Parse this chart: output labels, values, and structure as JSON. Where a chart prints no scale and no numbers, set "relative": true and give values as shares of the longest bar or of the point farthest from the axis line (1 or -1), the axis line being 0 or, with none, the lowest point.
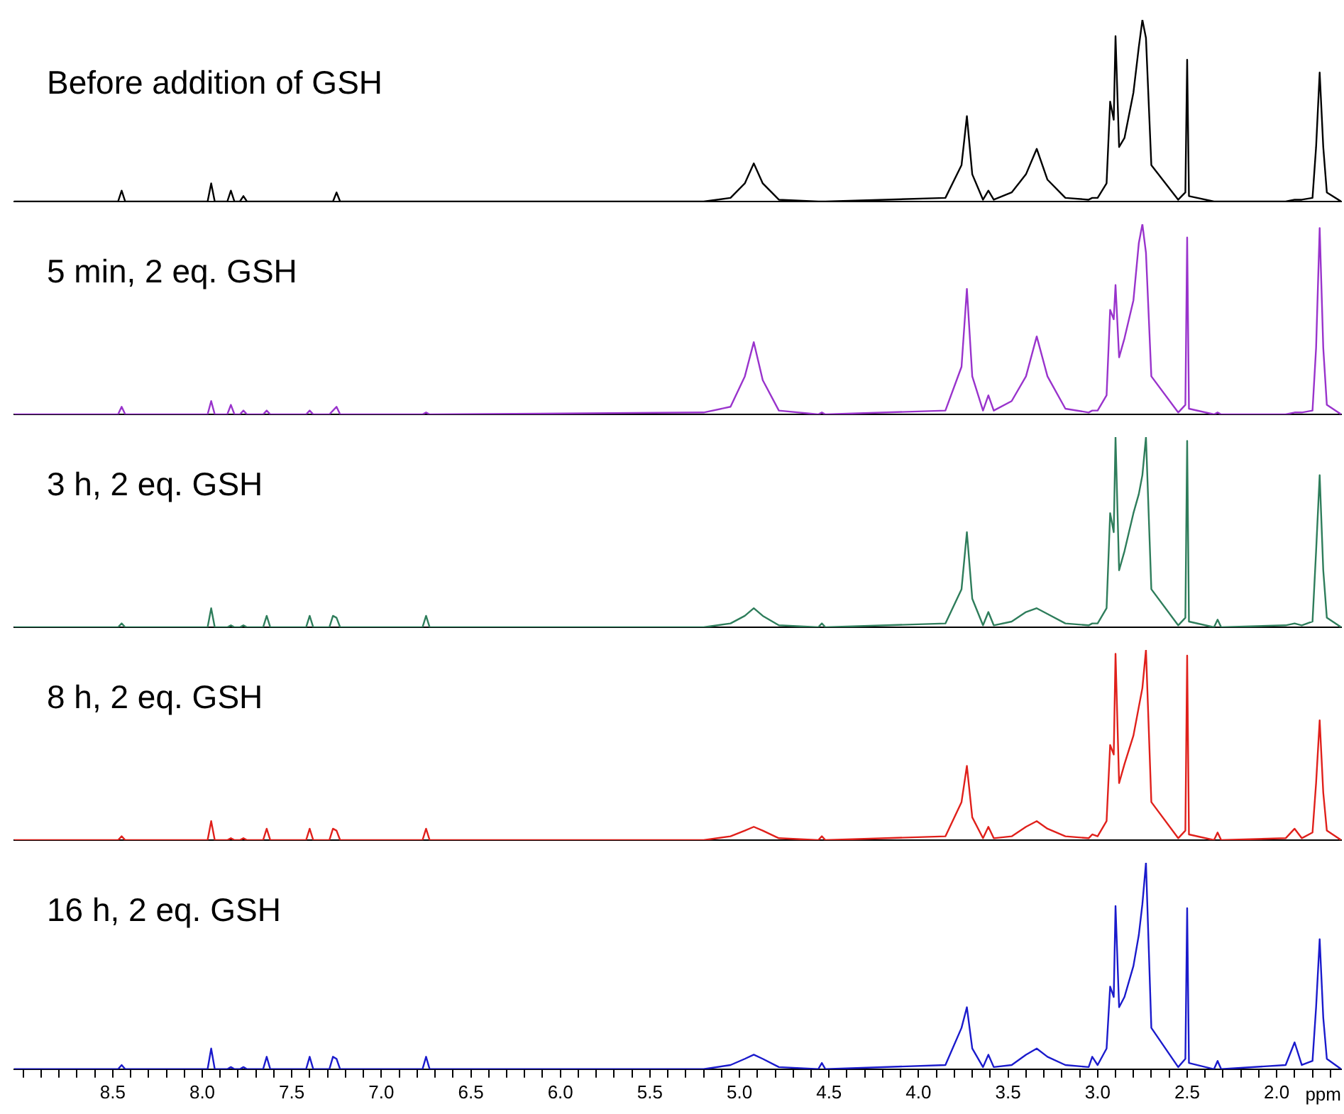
{
  "chart_data": [
    {
      "type": "line",
      "title": "Before addition of GSH",
      "relative": true,
      "tick_labels": false,
      "legend": false,
      "marker": "none",
      "color": "#000000",
      "xlim": [
        9.05,
        1.64
      ],
      "x": [
        9.05,
        8.47,
        8.45,
        8.43,
        7.97,
        7.95,
        7.93,
        7.86,
        7.84,
        7.82,
        7.79,
        7.77,
        7.75,
        7.66,
        7.64,
        7.62,
        7.42,
        7.4,
        7.38,
        7.29,
        7.27,
        7.25,
        7.23,
        6.77,
        6.75,
        6.73,
        5.2,
        5.05,
        4.97,
        4.92,
        4.87,
        4.78,
        4.56,
        4.54,
        4.52,
        3.85,
        3.76,
        3.73,
        3.7,
        3.64,
        3.61,
        3.58,
        3.48,
        3.4,
        3.34,
        3.28,
        3.18,
        3.05,
        3.03,
        3.0,
        2.95,
        2.93,
        2.91,
        2.9,
        2.88,
        2.85,
        2.8,
        2.77,
        2.75,
        2.73,
        2.7,
        2.55,
        2.51,
        2.5,
        2.49,
        2.35,
        2.33,
        2.31,
        1.95,
        1.9,
        1.86,
        1.8,
        1.78,
        1.76,
        1.74,
        1.72,
        1.64
      ],
      "values": [
        0,
        0,
        0.06,
        0,
        0,
        0.1,
        0,
        0,
        0.06,
        0,
        0,
        0.03,
        0,
        0,
        0,
        0,
        0,
        0,
        0,
        0,
        0,
        0.05,
        0,
        0,
        0,
        0,
        0,
        0.02,
        0.1,
        0.21,
        0.1,
        0.01,
        0,
        0,
        0,
        0.02,
        0.2,
        0.47,
        0.15,
        0.01,
        0.06,
        0.01,
        0.05,
        0.15,
        0.29,
        0.12,
        0.02,
        0.01,
        0.02,
        0.02,
        0.1,
        0.55,
        0.45,
        0.91,
        0.3,
        0.35,
        0.6,
        0.85,
        1,
        0.9,
        0.2,
        0.01,
        0.05,
        0.78,
        0.03,
        0,
        0,
        0,
        0,
        0.01,
        0.01,
        0.02,
        0.3,
        0.71,
        0.3,
        0.05,
        0
      ]
    },
    {
      "type": "line",
      "title": "5 min, 2 eq. GSH",
      "relative": true,
      "tick_labels": false,
      "legend": false,
      "marker": "none",
      "color": "#9933cc",
      "xlim": [
        9.05,
        1.64
      ],
      "x": [
        9.05,
        8.47,
        8.45,
        8.43,
        7.97,
        7.95,
        7.93,
        7.86,
        7.84,
        7.82,
        7.79,
        7.77,
        7.75,
        7.66,
        7.64,
        7.62,
        7.42,
        7.4,
        7.38,
        7.29,
        7.27,
        7.25,
        7.23,
        6.77,
        6.75,
        6.73,
        5.2,
        5.05,
        4.97,
        4.92,
        4.87,
        4.78,
        4.56,
        4.54,
        4.52,
        3.85,
        3.76,
        3.73,
        3.7,
        3.64,
        3.61,
        3.58,
        3.48,
        3.4,
        3.34,
        3.28,
        3.18,
        3.05,
        3.03,
        3.0,
        2.95,
        2.93,
        2.91,
        2.9,
        2.88,
        2.85,
        2.8,
        2.77,
        2.75,
        2.73,
        2.7,
        2.55,
        2.51,
        2.5,
        2.49,
        2.35,
        2.33,
        2.31,
        1.95,
        1.9,
        1.86,
        1.8,
        1.78,
        1.76,
        1.74,
        1.72,
        1.64
      ],
      "values": [
        0,
        0,
        0.04,
        0,
        0,
        0.07,
        0,
        0,
        0.05,
        0,
        0,
        0.02,
        0,
        0,
        0.02,
        0,
        0,
        0.02,
        0,
        0,
        0.02,
        0.04,
        0,
        0,
        0.01,
        0,
        0.01,
        0.04,
        0.2,
        0.38,
        0.18,
        0.02,
        0,
        0.01,
        0,
        0.02,
        0.25,
        0.66,
        0.2,
        0.02,
        0.1,
        0.02,
        0.07,
        0.2,
        0.41,
        0.2,
        0.03,
        0.01,
        0.02,
        0.02,
        0.1,
        0.55,
        0.5,
        0.68,
        0.3,
        0.4,
        0.6,
        0.9,
        1,
        0.85,
        0.2,
        0.01,
        0.05,
        0.93,
        0.03,
        0,
        0.01,
        0,
        0,
        0.01,
        0.01,
        0.02,
        0.35,
        0.98,
        0.35,
        0.05,
        0
      ]
    },
    {
      "type": "line",
      "title": "3 h, 2 eq. GSH",
      "relative": true,
      "tick_labels": false,
      "legend": false,
      "marker": "none",
      "color": "#2e7d5b",
      "xlim": [
        9.05,
        1.64
      ],
      "x": [
        9.05,
        8.47,
        8.45,
        8.43,
        7.97,
        7.95,
        7.93,
        7.86,
        7.84,
        7.82,
        7.79,
        7.77,
        7.75,
        7.66,
        7.64,
        7.62,
        7.42,
        7.4,
        7.38,
        7.29,
        7.27,
        7.25,
        7.23,
        6.77,
        6.75,
        6.73,
        5.2,
        5.05,
        4.97,
        4.92,
        4.87,
        4.78,
        4.56,
        4.54,
        4.52,
        3.85,
        3.76,
        3.73,
        3.7,
        3.64,
        3.61,
        3.58,
        3.48,
        3.4,
        3.34,
        3.28,
        3.18,
        3.05,
        3.03,
        3.0,
        2.95,
        2.93,
        2.91,
        2.9,
        2.88,
        2.85,
        2.8,
        2.77,
        2.75,
        2.73,
        2.7,
        2.55,
        2.51,
        2.5,
        2.49,
        2.35,
        2.33,
        2.31,
        1.95,
        1.9,
        1.86,
        1.8,
        1.78,
        1.76,
        1.74,
        1.72,
        1.64
      ],
      "values": [
        0,
        0,
        0.02,
        0,
        0,
        0.1,
        0,
        0,
        0.01,
        0,
        0,
        0.01,
        0,
        0,
        0.06,
        0,
        0,
        0.06,
        0,
        0,
        0.06,
        0.05,
        0,
        0,
        0.06,
        0,
        0,
        0.02,
        0.06,
        0.1,
        0.06,
        0.01,
        0,
        0.02,
        0,
        0.02,
        0.2,
        0.5,
        0.15,
        0.01,
        0.08,
        0.01,
        0.03,
        0.08,
        0.1,
        0.07,
        0.02,
        0.01,
        0.02,
        0.02,
        0.1,
        0.6,
        0.5,
        1,
        0.3,
        0.4,
        0.6,
        0.7,
        0.8,
        1,
        0.2,
        0.01,
        0.05,
        0.98,
        0.03,
        0,
        0.04,
        0,
        0.01,
        0.02,
        0.01,
        0.03,
        0.4,
        0.8,
        0.3,
        0.05,
        0
      ]
    },
    {
      "type": "line",
      "title": "8 h, 2 eq. GSH",
      "relative": true,
      "tick_labels": false,
      "legend": false,
      "marker": "none",
      "color": "#e0201b",
      "xlim": [
        9.05,
        1.64
      ],
      "x": [
        9.05,
        8.47,
        8.45,
        8.43,
        7.97,
        7.95,
        7.93,
        7.86,
        7.84,
        7.82,
        7.79,
        7.77,
        7.75,
        7.66,
        7.64,
        7.62,
        7.42,
        7.4,
        7.38,
        7.29,
        7.27,
        7.25,
        7.23,
        6.77,
        6.75,
        6.73,
        5.2,
        5.05,
        4.97,
        4.92,
        4.87,
        4.78,
        4.56,
        4.54,
        4.52,
        3.85,
        3.76,
        3.73,
        3.7,
        3.64,
        3.61,
        3.58,
        3.48,
        3.4,
        3.34,
        3.28,
        3.18,
        3.05,
        3.03,
        3.0,
        2.95,
        2.93,
        2.91,
        2.9,
        2.88,
        2.85,
        2.8,
        2.77,
        2.75,
        2.73,
        2.7,
        2.55,
        2.51,
        2.5,
        2.49,
        2.35,
        2.33,
        2.31,
        1.95,
        1.9,
        1.86,
        1.8,
        1.78,
        1.76,
        1.74,
        1.72,
        1.64
      ],
      "values": [
        0,
        0,
        0.02,
        0,
        0,
        0.1,
        0,
        0,
        0.01,
        0,
        0,
        0.01,
        0,
        0,
        0.06,
        0,
        0,
        0.06,
        0,
        0,
        0.06,
        0.05,
        0,
        0,
        0.06,
        0,
        0,
        0.02,
        0.05,
        0.07,
        0.05,
        0.01,
        0,
        0.02,
        0,
        0.02,
        0.2,
        0.39,
        0.12,
        0.01,
        0.07,
        0.01,
        0.02,
        0.07,
        0.1,
        0.06,
        0.02,
        0.01,
        0.03,
        0.02,
        0.1,
        0.5,
        0.45,
        0.98,
        0.3,
        0.4,
        0.55,
        0.7,
        0.8,
        1,
        0.2,
        0.01,
        0.05,
        0.97,
        0.03,
        0,
        0.04,
        0,
        0.01,
        0.06,
        0.01,
        0.04,
        0.3,
        0.63,
        0.25,
        0.05,
        0
      ]
    },
    {
      "type": "line",
      "title": "16 h, 2 eq. GSH",
      "xlabel": "ppm",
      "relative": true,
      "legend": false,
      "marker": "none",
      "color": "#1a1acc",
      "xlim": [
        9.05,
        1.64
      ],
      "xticks": [
        {
          "value": 9.0,
          "label": null
        },
        {
          "value": 8.9,
          "label": null
        },
        {
          "value": 8.8,
          "label": null
        },
        {
          "value": 8.7,
          "label": null
        },
        {
          "value": 8.6,
          "label": null
        },
        8.5,
        {
          "value": 8.4,
          "label": null
        },
        {
          "value": 8.3,
          "label": null
        },
        {
          "value": 8.2,
          "label": null
        },
        {
          "value": 8.1,
          "label": null
        },
        {
          "value": 8,
          "label": "8.0"
        },
        {
          "value": 7.9,
          "label": null
        },
        {
          "value": 7.8,
          "label": null
        },
        {
          "value": 7.7,
          "label": null
        },
        {
          "value": 7.6,
          "label": null
        },
        7.5,
        {
          "value": 7.4,
          "label": null
        },
        {
          "value": 7.3,
          "label": null
        },
        {
          "value": 7.2,
          "label": null
        },
        {
          "value": 7.1,
          "label": null
        },
        {
          "value": 7,
          "label": "7.0"
        },
        {
          "value": 6.9,
          "label": null
        },
        {
          "value": 6.8,
          "label": null
        },
        {
          "value": 6.7,
          "label": null
        },
        {
          "value": 6.6,
          "label": null
        },
        6.5,
        {
          "value": 6.4,
          "label": null
        },
        {
          "value": 6.3,
          "label": null
        },
        {
          "value": 6.2,
          "label": null
        },
        {
          "value": 6.1,
          "label": null
        },
        {
          "value": 6,
          "label": "6.0"
        },
        {
          "value": 5.9,
          "label": null
        },
        {
          "value": 5.8,
          "label": null
        },
        {
          "value": 5.7,
          "label": null
        },
        {
          "value": 5.6,
          "label": null
        },
        5.5,
        {
          "value": 5.4,
          "label": null
        },
        {
          "value": 5.3,
          "label": null
        },
        {
          "value": 5.2,
          "label": null
        },
        {
          "value": 5.1,
          "label": null
        },
        {
          "value": 5,
          "label": "5.0"
        },
        {
          "value": 4.9,
          "label": null
        },
        {
          "value": 4.8,
          "label": null
        },
        {
          "value": 4.7,
          "label": null
        },
        {
          "value": 4.6,
          "label": null
        },
        4.5,
        {
          "value": 4.4,
          "label": null
        },
        {
          "value": 4.3,
          "label": null
        },
        {
          "value": 4.2,
          "label": null
        },
        {
          "value": 4.1,
          "label": null
        },
        {
          "value": 4,
          "label": "4.0"
        },
        {
          "value": 3.9,
          "label": null
        },
        {
          "value": 3.8,
          "label": null
        },
        {
          "value": 3.7,
          "label": null
        },
        {
          "value": 3.6,
          "label": null
        },
        3.5,
        {
          "value": 3.4,
          "label": null
        },
        {
          "value": 3.3,
          "label": null
        },
        {
          "value": 3.2,
          "label": null
        },
        {
          "value": 3.1,
          "label": null
        },
        {
          "value": 3,
          "label": "3.0"
        },
        {
          "value": 2.9,
          "label": null
        },
        {
          "value": 2.8,
          "label": null
        },
        {
          "value": 2.7,
          "label": null
        },
        {
          "value": 2.6,
          "label": null
        },
        2.5,
        {
          "value": 2.4,
          "label": null
        },
        {
          "value": 2.3,
          "label": null
        },
        {
          "value": 2.2,
          "label": null
        },
        {
          "value": 2.1,
          "label": null
        },
        {
          "value": 2,
          "label": "2.0"
        },
        {
          "value": 1.9,
          "label": null
        },
        {
          "value": 1.8,
          "label": null
        },
        {
          "value": 1.7,
          "label": null
        }
      ],
      "x": [
        9.05,
        8.47,
        8.45,
        8.43,
        7.97,
        7.95,
        7.93,
        7.86,
        7.84,
        7.82,
        7.79,
        7.77,
        7.75,
        7.66,
        7.64,
        7.62,
        7.42,
        7.4,
        7.38,
        7.29,
        7.27,
        7.25,
        7.23,
        6.77,
        6.75,
        6.73,
        5.2,
        5.05,
        4.97,
        4.92,
        4.87,
        4.78,
        4.56,
        4.54,
        4.52,
        3.85,
        3.76,
        3.73,
        3.7,
        3.64,
        3.61,
        3.58,
        3.48,
        3.4,
        3.34,
        3.28,
        3.18,
        3.05,
        3.03,
        3.0,
        2.95,
        2.93,
        2.91,
        2.9,
        2.88,
        2.85,
        2.8,
        2.77,
        2.75,
        2.73,
        2.7,
        2.55,
        2.51,
        2.5,
        2.49,
        2.35,
        2.33,
        2.31,
        1.95,
        1.9,
        1.86,
        1.8,
        1.78,
        1.76,
        1.74,
        1.72,
        1.64
      ],
      "values": [
        0,
        0,
        0.02,
        0,
        0,
        0.1,
        0,
        0,
        0.01,
        0,
        0,
        0.01,
        0,
        0,
        0.06,
        0,
        0,
        0.06,
        0,
        0,
        0.06,
        0.05,
        0,
        0,
        0.06,
        0,
        0,
        0.02,
        0.05,
        0.07,
        0.05,
        0.01,
        0,
        0.03,
        0,
        0.02,
        0.2,
        0.3,
        0.1,
        0.01,
        0.07,
        0.01,
        0.02,
        0.07,
        0.1,
        0.06,
        0.02,
        0.01,
        0.06,
        0.02,
        0.1,
        0.4,
        0.35,
        0.79,
        0.3,
        0.35,
        0.5,
        0.65,
        0.8,
        1,
        0.2,
        0.01,
        0.05,
        0.78,
        0.03,
        0,
        0.04,
        0,
        0.02,
        0.13,
        0.02,
        0.04,
        0.3,
        0.63,
        0.25,
        0.05,
        0
      ]
    }
  ]
}
